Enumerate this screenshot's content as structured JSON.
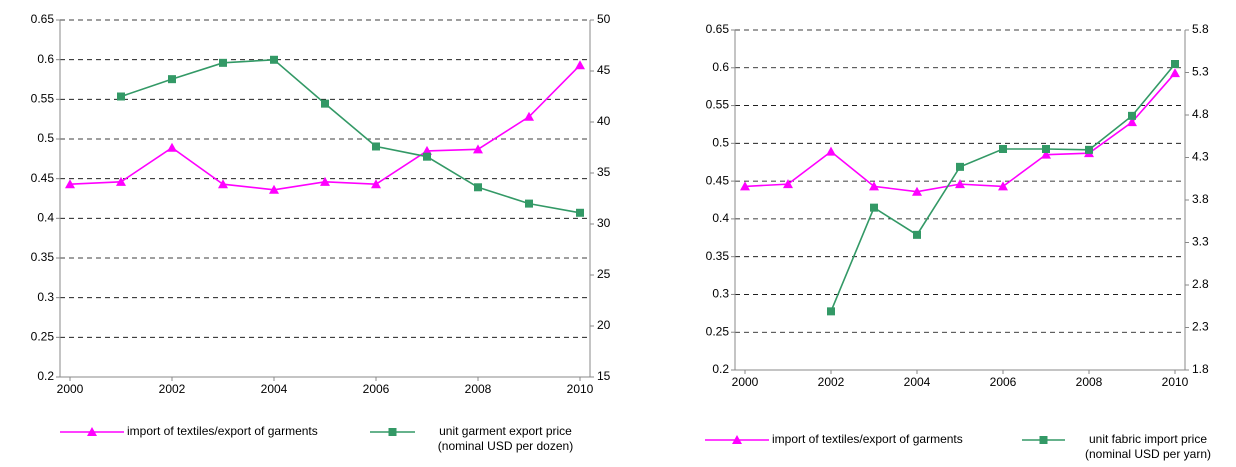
{
  "chart_data": [
    {
      "type": "line",
      "x": [
        2000,
        2001,
        2002,
        2003,
        2004,
        2005,
        2006,
        2007,
        2008,
        2009,
        2010
      ],
      "xlim": [
        2000,
        2010
      ],
      "xticks": [
        2000,
        2002,
        2004,
        2006,
        2008,
        2010
      ],
      "ylim": [
        0.2,
        0.65
      ],
      "yticks": [
        0.2,
        0.25,
        0.3,
        0.35,
        0.4,
        0.45,
        0.5,
        0.55,
        0.6,
        0.65
      ],
      "y2lim": [
        15,
        50
      ],
      "y2ticks": [
        15,
        20,
        25,
        30,
        35,
        40,
        45,
        50
      ],
      "grid": true,
      "series": [
        {
          "name": "import of textiles/export of garments",
          "color": "#ff00ff",
          "marker": "triangle",
          "values": [
            0.443,
            0.446,
            0.489,
            0.443,
            0.436,
            0.446,
            0.443,
            0.485,
            0.487,
            0.528,
            0.593
          ]
        },
        {
          "name": "unit garment export price (nominal USD per dozen)",
          "color": "#339966",
          "marker": "square",
          "axis": "y2",
          "values": [
            null,
            42.5,
            44.2,
            45.8,
            46.1,
            41.8,
            37.6,
            36.6,
            33.6,
            32.0,
            31.1
          ]
        }
      ]
    },
    {
      "type": "line",
      "x": [
        2000,
        2001,
        2002,
        2003,
        2004,
        2005,
        2006,
        2007,
        2008,
        2009,
        2010
      ],
      "xlim": [
        2000,
        2010
      ],
      "xticks": [
        2000,
        2002,
        2004,
        2006,
        2008,
        2010
      ],
      "ylim": [
        0.2,
        0.65
      ],
      "yticks": [
        0.2,
        0.25,
        0.3,
        0.35,
        0.4,
        0.45,
        0.5,
        0.55,
        0.6,
        0.65
      ],
      "y2lim": [
        1.8,
        5.8
      ],
      "y2ticks": [
        1.8,
        2.3,
        2.8,
        3.3,
        3.8,
        4.3,
        4.8,
        5.3,
        5.8
      ],
      "grid": true,
      "series": [
        {
          "name": "import of textiles/export of garments",
          "color": "#ff00ff",
          "marker": "triangle",
          "values": [
            0.443,
            0.446,
            0.489,
            0.443,
            0.436,
            0.446,
            0.443,
            0.485,
            0.487,
            0.528,
            0.593
          ]
        },
        {
          "name": "unit fabric import price (nominal USD per yarn)",
          "color": "#339966",
          "marker": "square",
          "axis": "y2",
          "values": [
            null,
            null,
            2.49,
            3.71,
            3.39,
            4.19,
            4.4,
            4.4,
            4.39,
            4.79,
            5.4
          ]
        }
      ]
    }
  ]
}
